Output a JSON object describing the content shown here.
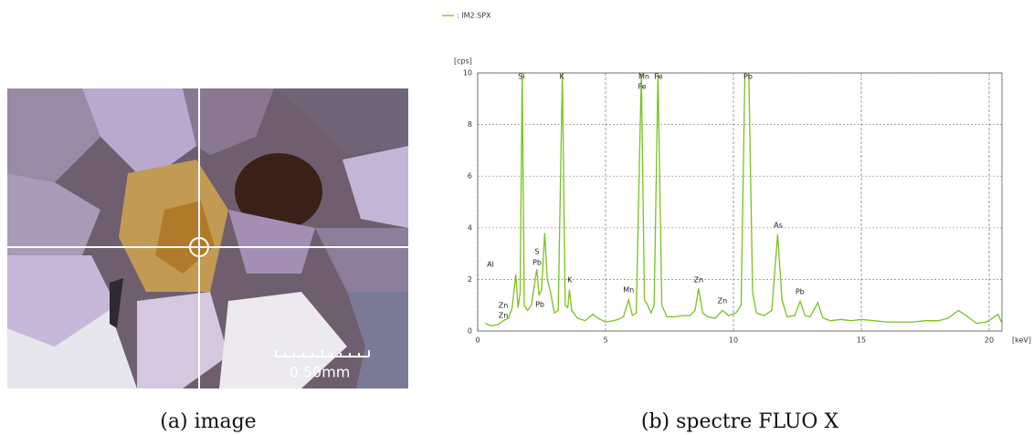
{
  "figure": {
    "scale_label": "0.50mm",
    "captions": [
      "(a) image",
      "(b) spectre FLUO X"
    ]
  },
  "chart_data": {
    "type": "line",
    "y_label": "[cps]",
    "x_label": "[keV]",
    "xlim": [
      0,
      20.5
    ],
    "ylim": [
      0,
      10
    ],
    "xticks": [
      0,
      5,
      10,
      15,
      20
    ],
    "yticks": [
      0,
      2,
      4,
      6,
      8,
      10
    ],
    "grid": true,
    "x": [
      0.3,
      0.5,
      0.8,
      1.0,
      1.2,
      1.35,
      1.49,
      1.58,
      1.66,
      1.74,
      1.82,
      1.95,
      2.1,
      2.31,
      2.4,
      2.5,
      2.62,
      2.72,
      2.85,
      3.0,
      3.15,
      3.31,
      3.42,
      3.52,
      3.59,
      3.68,
      3.9,
      4.2,
      4.5,
      4.7,
      5.0,
      5.3,
      5.5,
      5.7,
      5.9,
      6.05,
      6.2,
      6.4,
      6.52,
      6.65,
      6.78,
      6.9,
      7.05,
      7.2,
      7.4,
      7.7,
      8.0,
      8.3,
      8.5,
      8.64,
      8.8,
      9.0,
      9.3,
      9.57,
      9.8,
      10.1,
      10.3,
      10.45,
      10.6,
      10.75,
      10.9,
      11.2,
      11.5,
      11.73,
      11.9,
      12.1,
      12.4,
      12.61,
      12.8,
      13.0,
      13.3,
      13.5,
      13.8,
      14.2,
      14.6,
      15.0,
      15.5,
      16.0,
      16.5,
      17.0,
      17.5,
      18.0,
      18.4,
      18.8,
      19.1,
      19.5,
      19.9,
      20.2,
      20.35,
      20.5
    ],
    "series": [
      {
        "name": ": IM2.SPX",
        "color": "#7cc11f",
        "values": [
          0.3,
          0.2,
          0.25,
          0.4,
          0.5,
          0.9,
          2.2,
          0.9,
          1.5,
          10,
          1.0,
          0.8,
          1.0,
          2.4,
          1.4,
          1.6,
          3.8,
          2.0,
          1.5,
          0.7,
          0.8,
          10,
          1.0,
          0.9,
          1.6,
          0.8,
          0.5,
          0.4,
          0.65,
          0.5,
          0.35,
          0.4,
          0.45,
          0.55,
          1.2,
          0.6,
          0.7,
          10,
          1.2,
          1.0,
          0.7,
          1.0,
          10,
          1.0,
          0.55,
          0.55,
          0.6,
          0.6,
          0.8,
          1.65,
          0.7,
          0.55,
          0.5,
          0.8,
          0.6,
          0.7,
          1.0,
          10,
          10,
          1.5,
          0.7,
          0.6,
          0.8,
          3.75,
          1.2,
          0.55,
          0.6,
          1.15,
          0.6,
          0.55,
          1.1,
          0.5,
          0.4,
          0.45,
          0.4,
          0.45,
          0.4,
          0.35,
          0.35,
          0.35,
          0.4,
          0.4,
          0.5,
          0.8,
          0.6,
          0.3,
          0.35,
          0.55,
          0.65,
          0.3
        ]
      }
    ],
    "annotations": [
      {
        "text": "Zn",
        "x": 1.0,
        "y": 0.99
      },
      {
        "text": "Zn",
        "x": 1.0,
        "y": 0.6
      },
      {
        "text": "Al",
        "x": 0.5,
        "y": 2.58
      },
      {
        "text": "Si",
        "x": 1.71,
        "y": 9.86
      },
      {
        "text": "S",
        "x": 2.32,
        "y": 3.07
      },
      {
        "text": "Pb",
        "x": 2.32,
        "y": 2.65
      },
      {
        "text": "Pb",
        "x": 2.43,
        "y": 1.02
      },
      {
        "text": "K",
        "x": 3.29,
        "y": 9.86
      },
      {
        "text": "K",
        "x": 3.6,
        "y": 1.98
      },
      {
        "text": "Mn",
        "x": 5.9,
        "y": 1.59
      },
      {
        "text": "Mn",
        "x": 6.5,
        "y": 9.86
      },
      {
        "text": "Fe",
        "x": 6.43,
        "y": 9.47
      },
      {
        "text": "Fe",
        "x": 7.07,
        "y": 9.86
      },
      {
        "text": "Zn",
        "x": 8.64,
        "y": 1.98
      },
      {
        "text": "Zn",
        "x": 9.57,
        "y": 1.17
      },
      {
        "text": "Pb",
        "x": 10.57,
        "y": 9.86
      },
      {
        "text": "As",
        "x": 11.75,
        "y": 4.1
      },
      {
        "text": "Pb",
        "x": 12.6,
        "y": 1.52
      }
    ]
  }
}
